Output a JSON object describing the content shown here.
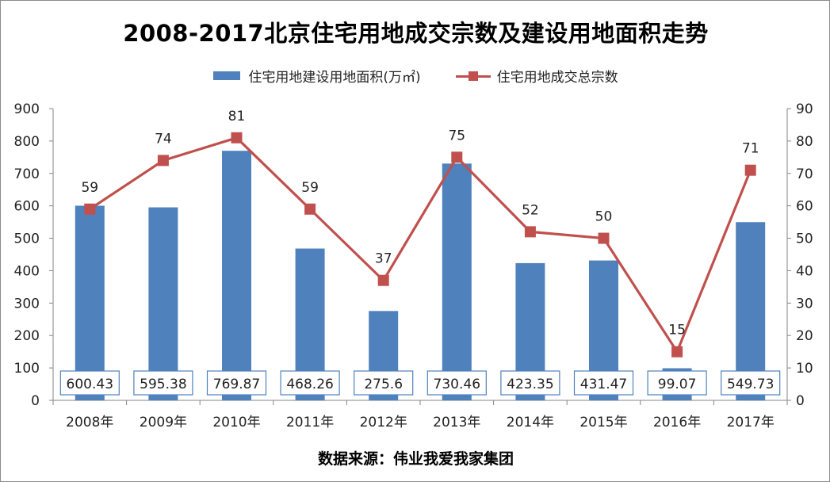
{
  "chart_data": {
    "type": "bar",
    "title": "2008-2017北京住宅用地成交宗数及建设用地面积走势",
    "categories": [
      "2008年",
      "2009年",
      "2010年",
      "2011年",
      "2012年",
      "2013年",
      "2014年",
      "2015年",
      "2016年",
      "2017年"
    ],
    "series": [
      {
        "name": "住宅用地建设用地面积(万㎡)",
        "type": "bar",
        "axis": "left",
        "color": "#4f81bd",
        "values": [
          600.43,
          595.38,
          769.87,
          468.26,
          275.6,
          730.46,
          423.35,
          431.47,
          99.07,
          549.73
        ],
        "labels": [
          "600.43",
          "595.38",
          "769.87",
          "468.26",
          "275.6",
          "730.46",
          "423.35",
          "431.47",
          "99.07",
          "549.73"
        ]
      },
      {
        "name": "住宅用地成交总宗数",
        "type": "line",
        "axis": "right",
        "color": "#c0504d",
        "values": [
          59,
          74,
          81,
          59,
          37,
          75,
          52,
          50,
          15,
          71
        ],
        "labels": [
          "59",
          "74",
          "81",
          "59",
          "37",
          "75",
          "52",
          "50",
          "15",
          "71"
        ]
      }
    ],
    "y_left": {
      "range": [
        0,
        900
      ],
      "ticks": [
        "0",
        "100",
        "200",
        "300",
        "400",
        "500",
        "600",
        "700",
        "800",
        "900"
      ]
    },
    "y_right": {
      "range": [
        0,
        90
      ],
      "ticks": [
        "0",
        "10",
        "20",
        "30",
        "40",
        "50",
        "60",
        "70",
        "80",
        "90"
      ]
    },
    "xlabel": "",
    "ylabel": "",
    "grid": false,
    "legend_position": "top"
  },
  "source_note": "数据来源：伟业我爱我家集团"
}
